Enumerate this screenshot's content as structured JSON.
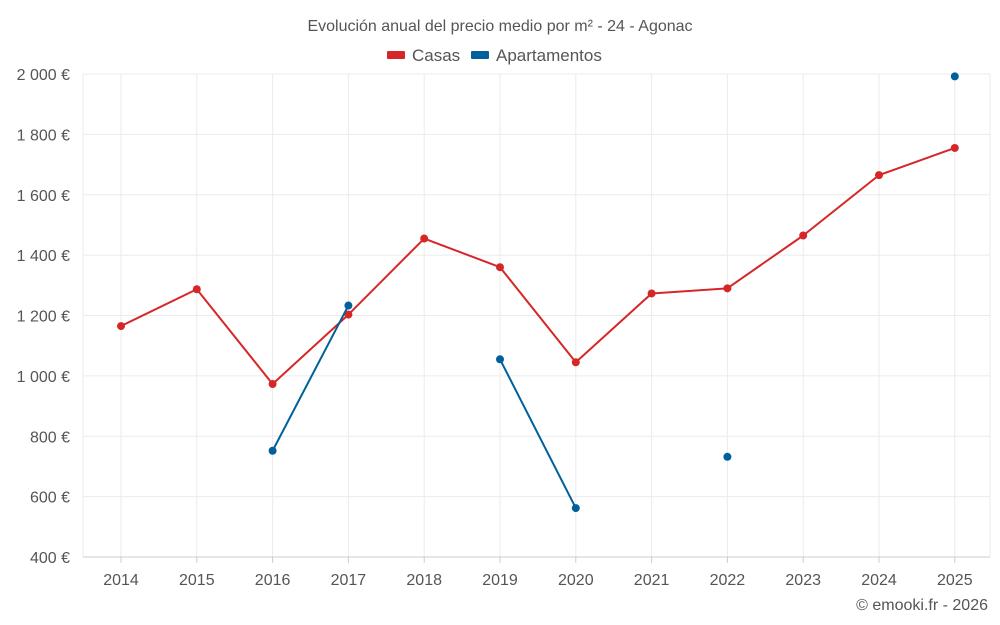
{
  "chart_data": {
    "type": "line",
    "title": "Evolución anual del precio medio por m² - 24 - Agonac",
    "categories": [
      "2014",
      "2015",
      "2016",
      "2017",
      "2018",
      "2019",
      "2020",
      "2021",
      "2022",
      "2023",
      "2024",
      "2025"
    ],
    "series": [
      {
        "name": "Casas",
        "color": "#d62728",
        "values": [
          1165,
          1287,
          973,
          1203,
          1455,
          1360,
          1045,
          1273,
          1290,
          1465,
          1665,
          1755
        ]
      },
      {
        "name": "Apartamentos",
        "color": "#00609a",
        "values": [
          null,
          null,
          752,
          1233,
          null,
          1055,
          562,
          null,
          732,
          null,
          null,
          1992
        ]
      }
    ],
    "yticks": [
      400,
      600,
      800,
      1000,
      1200,
      1400,
      1600,
      1800,
      2000
    ],
    "ytick_labels": [
      "400 €",
      "600 €",
      "800 €",
      "1 000 €",
      "1 200 €",
      "1 400 €",
      "1 600 €",
      "1 800 €",
      "2 000 €"
    ],
    "ylim": [
      400,
      2000
    ],
    "grid": true,
    "legend_position": "top-center",
    "credit": "© emooki.fr - 2026"
  }
}
